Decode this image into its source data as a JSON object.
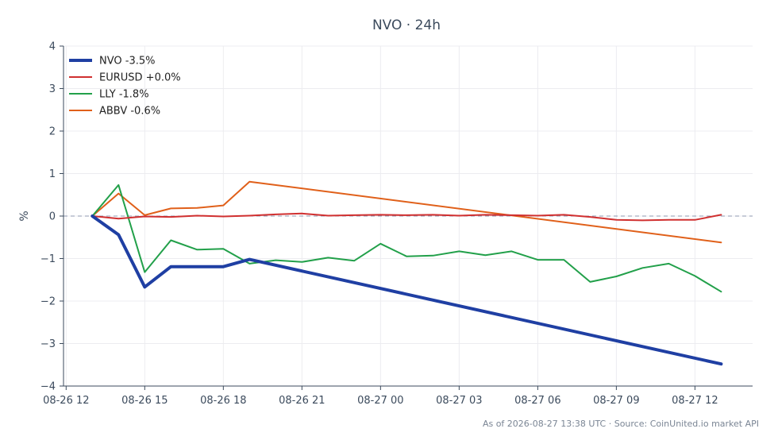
{
  "chart_data": {
    "type": "line",
    "title": "NVO · 24h",
    "xlabel": "",
    "ylabel": "%",
    "ylim": [
      -4,
      4
    ],
    "xlim_hours": [
      -0.1,
      26.2
    ],
    "yticks": [
      4,
      3,
      2,
      1,
      0,
      -1,
      -2,
      -3,
      -4
    ],
    "ytick_labels": [
      "4",
      "3",
      "2",
      "1",
      "0",
      "−1",
      "−2",
      "−3",
      "−4"
    ],
    "xticks": [
      {
        "t": 0,
        "label": "08-26 12"
      },
      {
        "t": 3,
        "label": "08-26 15"
      },
      {
        "t": 6,
        "label": "08-26 18"
      },
      {
        "t": 9,
        "label": "08-26 21"
      },
      {
        "t": 12,
        "label": "08-27 00"
      },
      {
        "t": 15,
        "label": "08-27 03"
      },
      {
        "t": 18,
        "label": "08-27 06"
      },
      {
        "t": 21,
        "label": "08-27 09"
      },
      {
        "t": 24,
        "label": "08-27 12"
      }
    ],
    "grid": true,
    "zero_line": true,
    "legend_position": "top-left",
    "series": [
      {
        "name": "NVO -3.5%",
        "color": "#1f3fa3",
        "width": 4,
        "points": [
          [
            1,
            0
          ],
          [
            2,
            -0.44
          ],
          [
            3,
            -1.67
          ],
          [
            4,
            -1.19
          ],
          [
            5,
            -1.19
          ],
          [
            6,
            -1.19
          ],
          [
            7,
            -1.02
          ],
          [
            25,
            -3.48
          ]
        ]
      },
      {
        "name": "EURUSD +0.0%",
        "color": "#d03030",
        "width": 2,
        "points": [
          [
            1,
            0
          ],
          [
            2,
            -0.06
          ],
          [
            3,
            -0.01
          ],
          [
            4,
            -0.02
          ],
          [
            5,
            0.01
          ],
          [
            6,
            -0.01
          ],
          [
            7,
            0.01
          ],
          [
            8,
            0.04
          ],
          [
            9,
            0.06
          ],
          [
            10,
            0.01
          ],
          [
            11,
            0.02
          ],
          [
            12,
            0.03
          ],
          [
            13,
            0.02
          ],
          [
            14,
            0.03
          ],
          [
            15,
            0.01
          ],
          [
            16,
            0.03
          ],
          [
            17,
            0.02
          ],
          [
            18,
            0.01
          ],
          [
            19,
            0.03
          ],
          [
            20,
            -0.02
          ],
          [
            21,
            -0.09
          ],
          [
            22,
            -0.1
          ],
          [
            23,
            -0.09
          ],
          [
            24,
            -0.09
          ],
          [
            25,
            0.03
          ]
        ]
      },
      {
        "name": "LLY -1.8%",
        "color": "#22a04a",
        "width": 2,
        "points": [
          [
            1,
            0
          ],
          [
            2,
            0.73
          ],
          [
            3,
            -1.32
          ],
          [
            4,
            -0.57
          ],
          [
            5,
            -0.79
          ],
          [
            6,
            -0.77
          ],
          [
            7,
            -1.12
          ],
          [
            8,
            -1.04
          ],
          [
            9,
            -1.08
          ],
          [
            10,
            -0.98
          ],
          [
            11,
            -1.05
          ],
          [
            12,
            -0.65
          ],
          [
            13,
            -0.95
          ],
          [
            14,
            -0.93
          ],
          [
            15,
            -0.83
          ],
          [
            16,
            -0.92
          ],
          [
            17,
            -0.83
          ],
          [
            18,
            -1.03
          ],
          [
            19,
            -1.03
          ],
          [
            20,
            -1.55
          ],
          [
            21,
            -1.42
          ],
          [
            22,
            -1.22
          ],
          [
            23,
            -1.12
          ],
          [
            24,
            -1.41
          ],
          [
            25,
            -1.78
          ]
        ]
      },
      {
        "name": "ABBV -0.6%",
        "color": "#e0601a",
        "width": 2,
        "points": [
          [
            1,
            0
          ],
          [
            2,
            0.53
          ],
          [
            3,
            0.02
          ],
          [
            4,
            0.18
          ],
          [
            5,
            0.19
          ],
          [
            6,
            0.25
          ],
          [
            7,
            0.81
          ],
          [
            25,
            -0.62
          ]
        ]
      }
    ]
  },
  "footer": "As of 2026-08-27 13:38 UTC · Source: CoinUnited.io market API"
}
